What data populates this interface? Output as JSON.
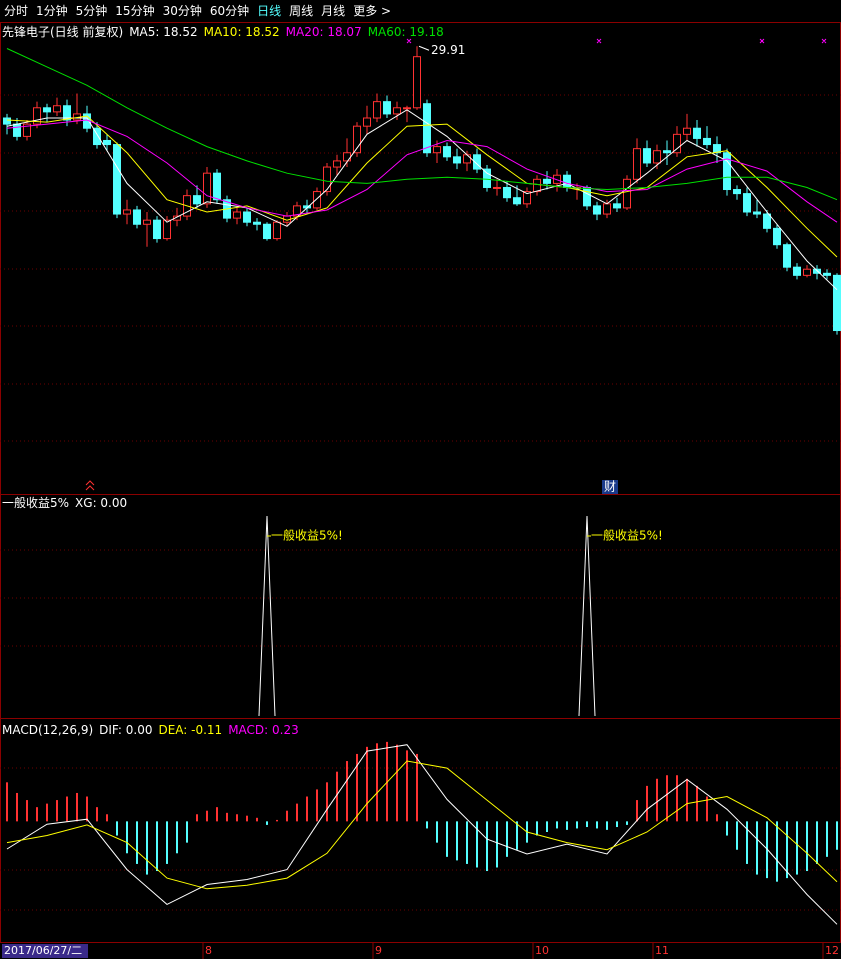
{
  "toolbar": {
    "items": [
      "分时",
      "1分钟",
      "5分钟",
      "15分钟",
      "30分钟",
      "60分钟",
      "日线",
      "周线",
      "月线",
      "更多 >"
    ],
    "active": 6
  },
  "chart_data": [
    {
      "type": "candlestick",
      "title": "先锋电子(日线 前复权)",
      "ylim": [
        8,
        31
      ],
      "up_color": "#ff3232",
      "down_color": "#54ffff",
      "candles": [
        [
          26.4,
          26.6,
          25.6,
          26.1
        ],
        [
          26.1,
          26.4,
          25.3,
          25.5
        ],
        [
          25.5,
          26.3,
          25.3,
          26.1
        ],
        [
          26.1,
          27.2,
          25.9,
          26.9
        ],
        [
          26.9,
          27.1,
          26.2,
          26.7
        ],
        [
          26.7,
          27.4,
          26.5,
          27.0
        ],
        [
          27.0,
          27.3,
          26.0,
          26.3
        ],
        [
          26.3,
          27.6,
          26.1,
          26.6
        ],
        [
          26.6,
          27.0,
          25.7,
          25.9
        ],
        [
          25.9,
          26.2,
          24.9,
          25.1
        ],
        [
          25.3,
          25.6,
          24.8,
          25.1
        ],
        [
          25.1,
          25.2,
          21.5,
          21.7
        ],
        [
          21.7,
          22.4,
          21.2,
          21.9
        ],
        [
          21.9,
          22.1,
          21.0,
          21.2
        ],
        [
          21.2,
          21.8,
          20.1,
          21.4
        ],
        [
          21.4,
          21.6,
          20.3,
          20.5
        ],
        [
          20.5,
          21.6,
          20.4,
          21.4
        ],
        [
          21.4,
          22.0,
          21.1,
          21.6
        ],
        [
          21.6,
          22.9,
          21.4,
          22.6
        ],
        [
          22.6,
          23.1,
          22.0,
          22.2
        ],
        [
          22.2,
          24.0,
          22.0,
          23.7
        ],
        [
          23.7,
          23.9,
          22.2,
          22.4
        ],
        [
          22.4,
          22.6,
          21.3,
          21.5
        ],
        [
          21.5,
          22.0,
          21.2,
          21.8
        ],
        [
          21.8,
          22.0,
          21.1,
          21.3
        ],
        [
          21.3,
          21.5,
          20.9,
          21.2
        ],
        [
          21.2,
          21.3,
          20.4,
          20.5
        ],
        [
          20.5,
          21.4,
          20.4,
          21.3
        ],
        [
          21.3,
          21.8,
          21.1,
          21.6
        ],
        [
          21.6,
          22.3,
          21.4,
          22.1
        ],
        [
          22.1,
          22.4,
          21.7,
          22.0
        ],
        [
          22.0,
          23.0,
          21.9,
          22.8
        ],
        [
          22.8,
          24.2,
          22.6,
          24.0
        ],
        [
          24.0,
          24.6,
          23.6,
          24.3
        ],
        [
          24.3,
          25.4,
          24.0,
          24.7
        ],
        [
          24.7,
          26.2,
          24.5,
          26.0
        ],
        [
          26.0,
          27.0,
          25.6,
          26.4
        ],
        [
          26.4,
          27.6,
          26.2,
          27.2
        ],
        [
          27.2,
          27.5,
          26.4,
          26.6
        ],
        [
          26.6,
          27.2,
          26.3,
          26.9
        ],
        [
          26.9,
          27.0,
          26.2,
          26.9
        ],
        [
          26.9,
          29.91,
          26.8,
          29.4
        ],
        [
          27.1,
          27.3,
          24.5,
          24.7
        ],
        [
          24.7,
          25.3,
          24.2,
          25.0
        ],
        [
          25.0,
          25.2,
          24.3,
          24.5
        ],
        [
          24.5,
          24.9,
          23.9,
          24.2
        ],
        [
          24.2,
          24.8,
          23.8,
          24.6
        ],
        [
          24.6,
          24.9,
          23.7,
          23.9
        ],
        [
          23.9,
          24.1,
          22.8,
          23.0
        ],
        [
          23.0,
          23.4,
          22.6,
          23.0
        ],
        [
          23.0,
          23.3,
          22.3,
          22.5
        ],
        [
          22.5,
          23.1,
          22.1,
          22.2
        ],
        [
          22.2,
          23.0,
          22.0,
          22.8
        ],
        [
          22.8,
          23.6,
          22.6,
          23.4
        ],
        [
          23.4,
          23.8,
          22.9,
          23.2
        ],
        [
          23.2,
          23.9,
          22.8,
          23.6
        ],
        [
          23.6,
          23.8,
          22.8,
          23.0
        ],
        [
          23.0,
          23.2,
          22.4,
          23.0
        ],
        [
          23.0,
          23.1,
          21.9,
          22.1
        ],
        [
          22.1,
          22.3,
          21.4,
          21.7
        ],
        [
          21.7,
          22.4,
          21.5,
          22.2
        ],
        [
          22.2,
          22.5,
          21.8,
          22.0
        ],
        [
          22.0,
          23.6,
          21.9,
          23.4
        ],
        [
          23.4,
          25.4,
          23.2,
          24.9
        ],
        [
          24.9,
          25.3,
          24.0,
          24.2
        ],
        [
          24.2,
          25.1,
          23.9,
          24.8
        ],
        [
          24.8,
          25.3,
          24.1,
          24.7
        ],
        [
          24.7,
          26.0,
          24.5,
          25.6
        ],
        [
          25.6,
          26.6,
          25.3,
          25.9
        ],
        [
          25.9,
          26.3,
          25.0,
          25.4
        ],
        [
          25.4,
          26.0,
          24.9,
          25.1
        ],
        [
          25.1,
          25.5,
          24.2,
          24.7
        ],
        [
          24.7,
          24.9,
          22.6,
          22.9
        ],
        [
          22.9,
          23.1,
          22.4,
          22.7
        ],
        [
          22.7,
          23.0,
          21.6,
          21.8
        ],
        [
          21.8,
          22.4,
          21.5,
          21.7
        ],
        [
          21.7,
          21.9,
          20.8,
          21.0
        ],
        [
          21.0,
          21.2,
          20.0,
          20.2
        ],
        [
          20.2,
          20.3,
          18.9,
          19.1
        ],
        [
          19.1,
          19.3,
          18.5,
          18.7
        ],
        [
          18.7,
          19.2,
          18.6,
          19.0
        ],
        [
          19.0,
          19.2,
          18.5,
          18.8
        ],
        [
          18.8,
          19.0,
          18.5,
          18.7
        ],
        [
          18.7,
          18.8,
          15.8,
          16.0
        ]
      ],
      "high_label_index": 41,
      "line_x": [
        0,
        4,
        8,
        12,
        16,
        20,
        24,
        28,
        32,
        36,
        40,
        44,
        48,
        52,
        56,
        60,
        64,
        68,
        72,
        76,
        80,
        83
      ],
      "series": [
        {
          "name": "MA5",
          "readout": "MA5: 18.52",
          "color": "#ffffff",
          "values": [
            26.0,
            26.4,
            26.4,
            23.2,
            21.3,
            22.3,
            22.0,
            21.1,
            22.9,
            25.6,
            26.8,
            25.5,
            23.7,
            22.7,
            23.2,
            22.2,
            23.7,
            25.3,
            24.3,
            21.8,
            19.4,
            18.0
          ]
        },
        {
          "name": "MA10",
          "readout": "MA10: 18.52",
          "color": "#ffff00",
          "values": [
            26.3,
            26.2,
            26.5,
            24.7,
            22.4,
            21.8,
            22.1,
            21.4,
            22.0,
            24.2,
            26.0,
            26.1,
            24.6,
            23.2,
            23.0,
            22.6,
            23.0,
            24.5,
            24.8,
            23.0,
            21.0,
            19.6
          ]
        },
        {
          "name": "MA20",
          "readout": "MA20: 18.07",
          "color": "#ff00ff",
          "values": [
            25.9,
            26.1,
            26.3,
            25.5,
            24.2,
            22.6,
            22.0,
            21.6,
            21.9,
            22.9,
            24.6,
            25.3,
            25.0,
            23.9,
            23.2,
            22.8,
            22.9,
            23.9,
            24.4,
            23.8,
            22.3,
            21.3
          ]
        },
        {
          "name": "MA60",
          "readout": "MA60: 19.18",
          "color": "#00e000",
          "values": [
            29.8,
            28.9,
            28.0,
            26.9,
            25.9,
            25.0,
            24.3,
            23.7,
            23.3,
            23.2,
            23.4,
            23.5,
            23.4,
            23.2,
            23.0,
            22.9,
            23.0,
            23.2,
            23.5,
            23.5,
            23.0,
            22.4
          ]
        }
      ],
      "annotation": "财",
      "annotation_index": 60
    },
    {
      "type": "signal",
      "title": "一般收益5%",
      "readout": "XG: 0.00",
      "ylim": [
        0,
        1
      ],
      "color": "#ffffff",
      "label_color": "#ffff00",
      "signals": [
        {
          "index": 26,
          "value": 1,
          "label": "一般收益5%!"
        },
        {
          "index": 58,
          "value": 1,
          "label": "一般收益5%!"
        }
      ]
    },
    {
      "type": "macd",
      "title": "MACD(12,26,9)",
      "ylim": [
        -1.7,
        1.4
      ],
      "line_x": [
        0,
        4,
        8,
        12,
        16,
        20,
        24,
        28,
        32,
        36,
        40,
        44,
        48,
        52,
        56,
        60,
        64,
        68,
        72,
        76,
        80,
        83
      ],
      "series": [
        {
          "name": "DIF",
          "readout": "DIF: 0.00",
          "color": "#ffffff",
          "values": [
            -0.39,
            -0.04,
            0.03,
            -0.68,
            -1.17,
            -0.89,
            -0.82,
            -0.68,
            0.17,
            0.99,
            1.08,
            0.31,
            -0.25,
            -0.46,
            -0.32,
            -0.46,
            0.17,
            0.59,
            0.17,
            -0.39,
            -1.03,
            -1.45
          ]
        },
        {
          "name": "DEA",
          "readout": "DEA: -0.11",
          "color": "#ffff00",
          "values": [
            -0.3,
            -0.2,
            -0.05,
            -0.3,
            -0.8,
            -0.95,
            -0.9,
            -0.8,
            -0.45,
            0.25,
            0.85,
            0.75,
            0.3,
            -0.15,
            -0.3,
            -0.4,
            -0.15,
            0.25,
            0.35,
            0.05,
            -0.45,
            -0.85
          ]
        }
      ],
      "histogram": {
        "name": "MACD",
        "readout": "MACD: 0.23",
        "color": "#ff00ff",
        "up_color": "#ff3232",
        "down_color": "#54ffff",
        "values": [
          0.55,
          0.4,
          0.3,
          0.2,
          0.25,
          0.3,
          0.35,
          0.4,
          0.35,
          0.2,
          0.1,
          -0.2,
          -0.45,
          -0.6,
          -0.75,
          -0.7,
          -0.6,
          -0.45,
          -0.3,
          0.1,
          0.15,
          0.2,
          0.12,
          0.1,
          0.08,
          0.05,
          -0.05,
          0.02,
          0.15,
          0.25,
          0.35,
          0.45,
          0.55,
          0.7,
          0.85,
          0.95,
          1.05,
          1.1,
          1.12,
          1.08,
          1.0,
          0.95,
          -0.1,
          -0.3,
          -0.5,
          -0.55,
          -0.6,
          -0.65,
          -0.7,
          -0.65,
          -0.5,
          -0.4,
          -0.3,
          -0.2,
          -0.15,
          -0.1,
          -0.12,
          -0.1,
          -0.08,
          -0.1,
          -0.12,
          -0.08,
          -0.05,
          0.3,
          0.5,
          0.6,
          0.65,
          0.65,
          0.6,
          0.5,
          0.35,
          0.1,
          -0.2,
          -0.4,
          -0.6,
          -0.75,
          -0.8,
          -0.85,
          -0.8,
          -0.75,
          -0.7,
          -0.6,
          -0.5,
          -0.4
        ]
      }
    }
  ],
  "date_axis": {
    "cursor_date": "2017/06/27/二",
    "months": [
      {
        "index": 20,
        "label": "8"
      },
      {
        "index": 37,
        "label": "9"
      },
      {
        "index": 53,
        "label": "10"
      },
      {
        "index": 65,
        "label": "11"
      },
      {
        "index": 82,
        "label": "12"
      }
    ]
  }
}
